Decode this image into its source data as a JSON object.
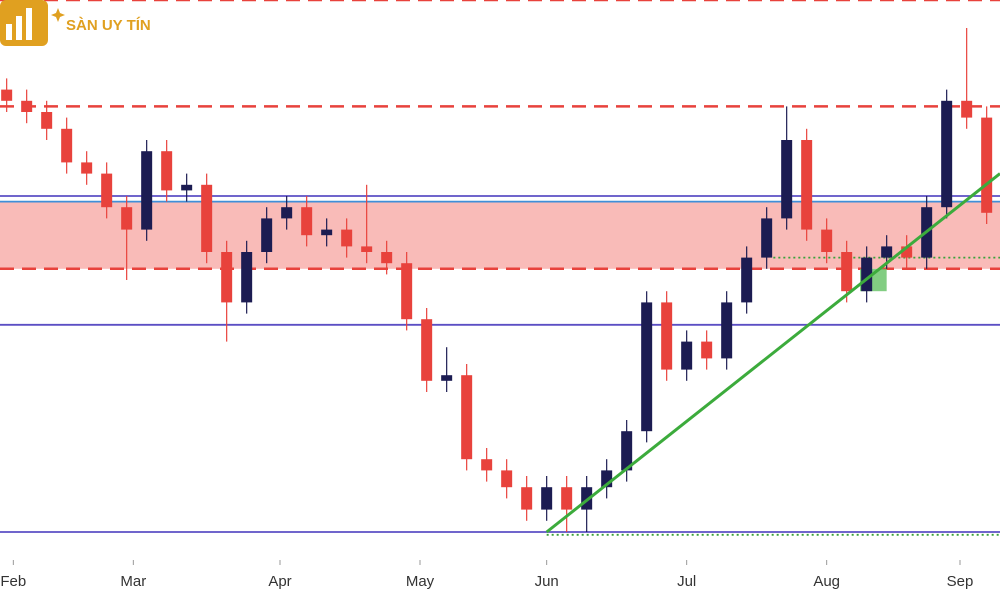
{
  "logo": {
    "text": "SÀN UY TÍN"
  },
  "chart_data": {
    "type": "candlestick",
    "xlim": [
      0,
      150
    ],
    "ylim": [
      0,
      100
    ],
    "xticks": [
      {
        "value": 2,
        "label": "Feb"
      },
      {
        "value": 20,
        "label": "Mar"
      },
      {
        "value": 42,
        "label": "Apr"
      },
      {
        "value": 63,
        "label": "May"
      },
      {
        "value": 82,
        "label": "Jun"
      },
      {
        "value": 103,
        "label": "Jul"
      },
      {
        "value": 124,
        "label": "Aug"
      },
      {
        "value": 144,
        "label": "Sep"
      }
    ],
    "up_color": "#1c1c52",
    "down_color": "#e8423c",
    "x": [
      1,
      4,
      7,
      10,
      13,
      16,
      19,
      22,
      25,
      28,
      31,
      34,
      37,
      40,
      43,
      46,
      49,
      52,
      55,
      58,
      61,
      64,
      67,
      70,
      73,
      76,
      79,
      82,
      85,
      88,
      91,
      94,
      97,
      100,
      103,
      106,
      109,
      112,
      115,
      118,
      121,
      124,
      127,
      130,
      133,
      136,
      139,
      142,
      145,
      148
    ],
    "open": [
      84,
      82,
      80,
      77,
      71,
      69,
      63,
      59,
      73,
      66,
      67,
      55,
      46,
      55,
      61,
      63,
      58,
      59,
      56,
      55,
      53,
      43,
      32,
      33,
      18,
      16,
      13,
      9,
      13,
      9,
      13,
      16,
      23,
      46,
      34,
      39,
      36,
      46,
      54,
      61,
      75,
      59,
      55,
      48,
      54,
      56,
      54,
      63,
      82,
      79
    ],
    "high": [
      86,
      84,
      82,
      79,
      73,
      71,
      65,
      75,
      75,
      69,
      69,
      57,
      57,
      63,
      65,
      65,
      61,
      61,
      67,
      57,
      55,
      45,
      38,
      35,
      20,
      18,
      15,
      15,
      15,
      15,
      18,
      25,
      48,
      48,
      41,
      41,
      48,
      56,
      63,
      81,
      77,
      61,
      57,
      56,
      58,
      58,
      65,
      84,
      95,
      81
    ],
    "low": [
      80,
      78,
      75,
      69,
      67,
      61,
      50,
      57,
      64,
      64,
      53,
      39,
      44,
      53,
      59,
      56,
      56,
      54,
      53,
      51,
      41,
      30,
      30,
      16,
      14,
      11,
      7,
      7,
      5,
      5,
      11,
      14,
      21,
      32,
      32,
      34,
      34,
      44,
      52,
      59,
      57,
      53,
      46,
      46,
      52,
      52,
      52,
      61,
      77,
      60
    ],
    "close": [
      82,
      80,
      77,
      71,
      69,
      63,
      59,
      73,
      66,
      67,
      55,
      46,
      55,
      61,
      63,
      58,
      59,
      56,
      55,
      53,
      43,
      32,
      33,
      18,
      16,
      13,
      9,
      13,
      9,
      13,
      16,
      23,
      46,
      34,
      39,
      36,
      46,
      54,
      61,
      75,
      59,
      55,
      48,
      54,
      56,
      54,
      63,
      82,
      79,
      62
    ],
    "zone": {
      "from": 52,
      "to": 64,
      "color": "#f8b4b0"
    },
    "levels": [
      {
        "value": 100,
        "color": "#e8423c",
        "style": "dashed"
      },
      {
        "value": 81,
        "color": "#e8423c",
        "style": "dashed"
      },
      {
        "value": 52,
        "color": "#e8423c",
        "style": "dashed"
      },
      {
        "value": 65,
        "color": "#5b4fc4",
        "style": "solid"
      },
      {
        "value": 64,
        "color": "#3f8fd8",
        "style": "solid"
      },
      {
        "value": 42,
        "color": "#5b4fc4",
        "style": "solid"
      },
      {
        "value": 5,
        "color": "#5b4fc4",
        "style": "solid"
      },
      {
        "value": 54,
        "color": "#3aa03a",
        "style": "dotted",
        "from": 116
      },
      {
        "value": 4.5,
        "color": "#3aa03a",
        "style": "dotted",
        "from": 82
      }
    ],
    "highlight": {
      "x": [
        129,
        133
      ],
      "y": [
        48,
        52
      ],
      "color": "#6cc46c"
    },
    "trendline": {
      "x": [
        82,
        150
      ],
      "y": [
        5,
        69
      ],
      "color": "#3cab3c"
    }
  }
}
